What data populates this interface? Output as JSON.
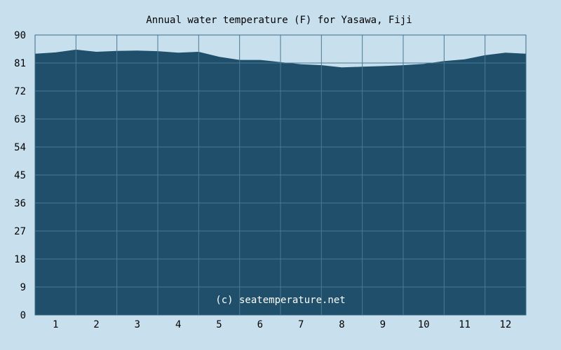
{
  "chart_data": {
    "type": "area",
    "title": "Annual water temperature (F) for Yasawa, Fiji",
    "xlabel": "",
    "ylabel": "",
    "ylim": [
      0,
      90
    ],
    "y_ticks": [
      0,
      9,
      18,
      27,
      36,
      45,
      54,
      63,
      72,
      81,
      90
    ],
    "categories": [
      "1",
      "2",
      "3",
      "4",
      "5",
      "6",
      "7",
      "8",
      "9",
      "10",
      "11",
      "12"
    ],
    "x": [
      0.5,
      1.0,
      1.5,
      2.0,
      2.5,
      3.0,
      3.5,
      4.0,
      4.5,
      5.0,
      5.5,
      6.0,
      6.5,
      7.0,
      7.5,
      8.0,
      8.5,
      9.0,
      9.5,
      10.0,
      10.5,
      11.0,
      11.5,
      12.0,
      12.5
    ],
    "values": [
      84.0,
      84.4,
      85.3,
      84.6,
      84.9,
      85.0,
      84.8,
      84.3,
      84.6,
      83.0,
      82.0,
      82.0,
      81.3,
      80.6,
      80.3,
      79.6,
      79.8,
      80.0,
      80.3,
      80.7,
      81.6,
      82.2,
      83.5,
      84.3,
      84.0
    ],
    "grid": true,
    "colors": {
      "background": "#c8e0ee",
      "area": "#1f4f6a",
      "grid": "#4a7a93"
    },
    "annotation": "(c) seatemperature.net"
  }
}
